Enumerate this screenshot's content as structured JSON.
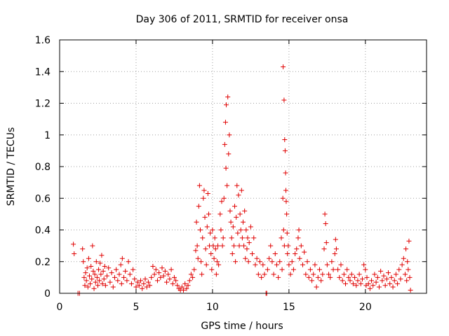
{
  "chart_data": {
    "type": "scatter",
    "title": "Day 306 of 2011, SRMTID for receiver onsa",
    "xlabel": "GPS time / hours",
    "ylabel": "SRMTID / TECUs",
    "xlim": [
      0,
      24
    ],
    "ylim": [
      0,
      1.6
    ],
    "xticks": [
      0,
      5,
      10,
      15,
      20
    ],
    "yticks": [
      0,
      0.2,
      0.4,
      0.6,
      0.8,
      1,
      1.2,
      1.4,
      1.6
    ],
    "xtick_labels": [
      "0",
      "5",
      "10",
      "15",
      "20"
    ],
    "ytick_labels": [
      "0",
      "0.2",
      "0.4",
      "0.6",
      "0.8",
      "1",
      "1.2",
      "1.4",
      "1.6"
    ],
    "grid": true,
    "marker": "plus",
    "series_color": "#e00000",
    "series": [
      {
        "name": "SRMTID",
        "points": [
          [
            0.9,
            0.31
          ],
          [
            0.95,
            0.25
          ],
          [
            1.2,
            0.0
          ],
          [
            1.3,
            0.0
          ],
          [
            1.5,
            0.28
          ],
          [
            1.55,
            0.2
          ],
          [
            1.6,
            0.1
          ],
          [
            1.65,
            0.05
          ],
          [
            1.7,
            0.13
          ],
          [
            1.75,
            0.08
          ],
          [
            1.8,
            0.16
          ],
          [
            1.85,
            0.04
          ],
          [
            1.9,
            0.22
          ],
          [
            1.95,
            0.11
          ],
          [
            2.0,
            0.06
          ],
          [
            2.05,
            0.17
          ],
          [
            2.1,
            0.09
          ],
          [
            2.15,
            0.3
          ],
          [
            2.2,
            0.14
          ],
          [
            2.25,
            0.03
          ],
          [
            2.3,
            0.12
          ],
          [
            2.35,
            0.07
          ],
          [
            2.4,
            0.2
          ],
          [
            2.45,
            0.1
          ],
          [
            2.5,
            0.05
          ],
          [
            2.55,
            0.15
          ],
          [
            2.6,
            0.08
          ],
          [
            2.65,
            0.19
          ],
          [
            2.7,
            0.12
          ],
          [
            2.75,
            0.24
          ],
          [
            2.8,
            0.06
          ],
          [
            2.85,
            0.14
          ],
          [
            2.9,
            0.09
          ],
          [
            2.95,
            0.17
          ],
          [
            3.0,
            0.05
          ],
          [
            3.1,
            0.11
          ],
          [
            3.2,
            0.16
          ],
          [
            3.3,
            0.07
          ],
          [
            3.4,
            0.13
          ],
          [
            3.5,
            0.04
          ],
          [
            3.6,
            0.1
          ],
          [
            3.7,
            0.15
          ],
          [
            3.8,
            0.08
          ],
          [
            3.9,
            0.12
          ],
          [
            4.0,
            0.18
          ],
          [
            4.05,
            0.06
          ],
          [
            4.1,
            0.22
          ],
          [
            4.2,
            0.1
          ],
          [
            4.3,
            0.14
          ],
          [
            4.4,
            0.08
          ],
          [
            4.5,
            0.2
          ],
          [
            4.6,
            0.12
          ],
          [
            4.7,
            0.06
          ],
          [
            4.8,
            0.15
          ],
          [
            4.9,
            0.09
          ],
          [
            5.0,
            0.04
          ],
          [
            5.1,
            0.07
          ],
          [
            5.2,
            0.05
          ],
          [
            5.3,
            0.08
          ],
          [
            5.4,
            0.03
          ],
          [
            5.5,
            0.06
          ],
          [
            5.6,
            0.09
          ],
          [
            5.7,
            0.04
          ],
          [
            5.8,
            0.07
          ],
          [
            5.9,
            0.05
          ],
          [
            6.0,
            0.1
          ],
          [
            6.1,
            0.17
          ],
          [
            6.2,
            0.12
          ],
          [
            6.3,
            0.15
          ],
          [
            6.4,
            0.08
          ],
          [
            6.5,
            0.13
          ],
          [
            6.6,
            0.1
          ],
          [
            6.7,
            0.16
          ],
          [
            6.8,
            0.11
          ],
          [
            6.9,
            0.14
          ],
          [
            7.0,
            0.07
          ],
          [
            7.1,
            0.12
          ],
          [
            7.2,
            0.09
          ],
          [
            7.3,
            0.15
          ],
          [
            7.4,
            0.06
          ],
          [
            7.5,
            0.1
          ],
          [
            7.6,
            0.08
          ],
          [
            7.7,
            0.05
          ],
          [
            7.8,
            0.03
          ],
          [
            7.9,
            0.02
          ],
          [
            8.0,
            0.04
          ],
          [
            8.1,
            0.02
          ],
          [
            8.2,
            0.06
          ],
          [
            8.3,
            0.03
          ],
          [
            8.4,
            0.05
          ],
          [
            8.5,
            0.08
          ],
          [
            8.6,
            0.12
          ],
          [
            8.7,
            0.1
          ],
          [
            8.8,
            0.15
          ],
          [
            8.9,
            0.27
          ],
          [
            8.95,
            0.45
          ],
          [
            9.0,
            0.3
          ],
          [
            9.05,
            0.22
          ],
          [
            9.1,
            0.55
          ],
          [
            9.15,
            0.68
          ],
          [
            9.2,
            0.4
          ],
          [
            9.25,
            0.2
          ],
          [
            9.3,
            0.12
          ],
          [
            9.35,
            0.35
          ],
          [
            9.4,
            0.6
          ],
          [
            9.45,
            0.65
          ],
          [
            9.5,
            0.48
          ],
          [
            9.55,
            0.28
          ],
          [
            9.6,
            0.18
          ],
          [
            9.65,
            0.42
          ],
          [
            9.7,
            0.63
          ],
          [
            9.75,
            0.5
          ],
          [
            9.8,
            0.3
          ],
          [
            9.85,
            0.38
          ],
          [
            9.9,
            0.25
          ],
          [
            9.95,
            0.15
          ],
          [
            10.0,
            0.4
          ],
          [
            10.05,
            0.3
          ],
          [
            10.1,
            0.22
          ],
          [
            10.15,
            0.35
          ],
          [
            10.2,
            0.28
          ],
          [
            10.25,
            0.12
          ],
          [
            10.3,
            0.2
          ],
          [
            10.35,
            0.3
          ],
          [
            10.4,
            0.18
          ],
          [
            10.5,
            0.5
          ],
          [
            10.55,
            0.4
          ],
          [
            10.6,
            0.58
          ],
          [
            10.65,
            0.3
          ],
          [
            10.7,
            0.35
          ],
          [
            10.75,
            0.6
          ],
          [
            10.8,
            0.94
          ],
          [
            10.85,
            1.08
          ],
          [
            10.88,
            0.79
          ],
          [
            10.9,
            1.19
          ],
          [
            10.95,
            0.68
          ],
          [
            11.0,
            1.24
          ],
          [
            11.05,
            0.88
          ],
          [
            11.1,
            1.0
          ],
          [
            11.15,
            0.52
          ],
          [
            11.2,
            0.45
          ],
          [
            11.25,
            0.35
          ],
          [
            11.3,
            0.25
          ],
          [
            11.35,
            0.42
          ],
          [
            11.4,
            0.3
          ],
          [
            11.45,
            0.55
          ],
          [
            11.5,
            0.2
          ],
          [
            11.55,
            0.48
          ],
          [
            11.6,
            0.68
          ],
          [
            11.65,
            0.38
          ],
          [
            11.7,
            0.62
          ],
          [
            11.75,
            0.3
          ],
          [
            11.8,
            0.5
          ],
          [
            11.85,
            0.4
          ],
          [
            11.9,
            0.65
          ],
          [
            11.95,
            0.35
          ],
          [
            12.0,
            0.45
          ],
          [
            12.05,
            0.3
          ],
          [
            12.1,
            0.52
          ],
          [
            12.15,
            0.22
          ],
          [
            12.2,
            0.4
          ],
          [
            12.25,
            0.28
          ],
          [
            12.3,
            0.35
          ],
          [
            12.35,
            0.2
          ],
          [
            12.4,
            0.32
          ],
          [
            12.5,
            0.42
          ],
          [
            12.6,
            0.25
          ],
          [
            12.7,
            0.35
          ],
          [
            12.8,
            0.18
          ],
          [
            12.9,
            0.22
          ],
          [
            13.0,
            0.12
          ],
          [
            13.1,
            0.2
          ],
          [
            13.2,
            0.1
          ],
          [
            13.3,
            0.18
          ],
          [
            13.4,
            0.12
          ],
          [
            13.5,
            0.0
          ],
          [
            13.55,
            0.0
          ],
          [
            13.6,
            0.15
          ],
          [
            13.7,
            0.22
          ],
          [
            13.8,
            0.3
          ],
          [
            13.9,
            0.2
          ],
          [
            14.0,
            0.12
          ],
          [
            14.1,
            0.25
          ],
          [
            14.2,
            0.18
          ],
          [
            14.3,
            0.1
          ],
          [
            14.4,
            0.2
          ],
          [
            14.5,
            0.35
          ],
          [
            14.55,
            0.15
          ],
          [
            14.6,
            0.6
          ],
          [
            14.62,
            1.43
          ],
          [
            14.65,
            0.4
          ],
          [
            14.68,
            1.22
          ],
          [
            14.7,
            0.3
          ],
          [
            14.72,
            0.97
          ],
          [
            14.75,
            0.9
          ],
          [
            14.78,
            0.76
          ],
          [
            14.8,
            0.65
          ],
          [
            14.82,
            0.58
          ],
          [
            14.85,
            0.5
          ],
          [
            14.88,
            0.38
          ],
          [
            14.9,
            0.25
          ],
          [
            14.95,
            0.3
          ],
          [
            15.0,
            0.18
          ],
          [
            15.1,
            0.12
          ],
          [
            15.2,
            0.2
          ],
          [
            15.3,
            0.15
          ],
          [
            15.4,
            0.25
          ],
          [
            15.5,
            0.28
          ],
          [
            15.6,
            0.35
          ],
          [
            15.65,
            0.4
          ],
          [
            15.7,
            0.22
          ],
          [
            15.8,
            0.3
          ],
          [
            15.9,
            0.18
          ],
          [
            16.0,
            0.26
          ],
          [
            16.1,
            0.12
          ],
          [
            16.2,
            0.2
          ],
          [
            16.3,
            0.1
          ],
          [
            16.4,
            0.15
          ],
          [
            16.5,
            0.08
          ],
          [
            16.6,
            0.12
          ],
          [
            16.7,
            0.18
          ],
          [
            16.8,
            0.04
          ],
          [
            16.9,
            0.1
          ],
          [
            17.0,
            0.15
          ],
          [
            17.1,
            0.08
          ],
          [
            17.2,
            0.12
          ],
          [
            17.3,
            0.28
          ],
          [
            17.35,
            0.5
          ],
          [
            17.4,
            0.44
          ],
          [
            17.45,
            0.32
          ],
          [
            17.5,
            0.18
          ],
          [
            17.6,
            0.12
          ],
          [
            17.7,
            0.1
          ],
          [
            17.8,
            0.2
          ],
          [
            17.9,
            0.15
          ],
          [
            18.0,
            0.25
          ],
          [
            18.05,
            0.34
          ],
          [
            18.1,
            0.28
          ],
          [
            18.2,
            0.15
          ],
          [
            18.3,
            0.1
          ],
          [
            18.4,
            0.18
          ],
          [
            18.5,
            0.08
          ],
          [
            18.6,
            0.12
          ],
          [
            18.7,
            0.06
          ],
          [
            18.8,
            0.15
          ],
          [
            18.9,
            0.1
          ],
          [
            19.0,
            0.08
          ],
          [
            19.1,
            0.12
          ],
          [
            19.2,
            0.06
          ],
          [
            19.3,
            0.1
          ],
          [
            19.4,
            0.05
          ],
          [
            19.5,
            0.08
          ],
          [
            19.6,
            0.12
          ],
          [
            19.7,
            0.06
          ],
          [
            19.8,
            0.09
          ],
          [
            19.9,
            0.18
          ],
          [
            20.0,
            0.15
          ],
          [
            20.05,
            0.05
          ],
          [
            20.1,
            0.1
          ],
          [
            20.2,
            0.06
          ],
          [
            20.3,
            0.03
          ],
          [
            20.4,
            0.08
          ],
          [
            20.5,
            0.05
          ],
          [
            20.6,
            0.12
          ],
          [
            20.7,
            0.07
          ],
          [
            20.8,
            0.1
          ],
          [
            20.9,
            0.04
          ],
          [
            21.0,
            0.14
          ],
          [
            21.1,
            0.08
          ],
          [
            21.2,
            0.11
          ],
          [
            21.3,
            0.05
          ],
          [
            21.4,
            0.09
          ],
          [
            21.5,
            0.13
          ],
          [
            21.6,
            0.06
          ],
          [
            21.7,
            0.1
          ],
          [
            21.8,
            0.04
          ],
          [
            21.9,
            0.08
          ],
          [
            22.0,
            0.12
          ],
          [
            22.1,
            0.06
          ],
          [
            22.2,
            0.15
          ],
          [
            22.3,
            0.09
          ],
          [
            22.4,
            0.18
          ],
          [
            22.5,
            0.22
          ],
          [
            22.6,
            0.12
          ],
          [
            22.65,
            0.28
          ],
          [
            22.7,
            0.08
          ],
          [
            22.75,
            0.2
          ],
          [
            22.8,
            0.15
          ],
          [
            22.85,
            0.33
          ],
          [
            22.9,
            0.1
          ],
          [
            22.95,
            0.02
          ]
        ]
      }
    ]
  }
}
